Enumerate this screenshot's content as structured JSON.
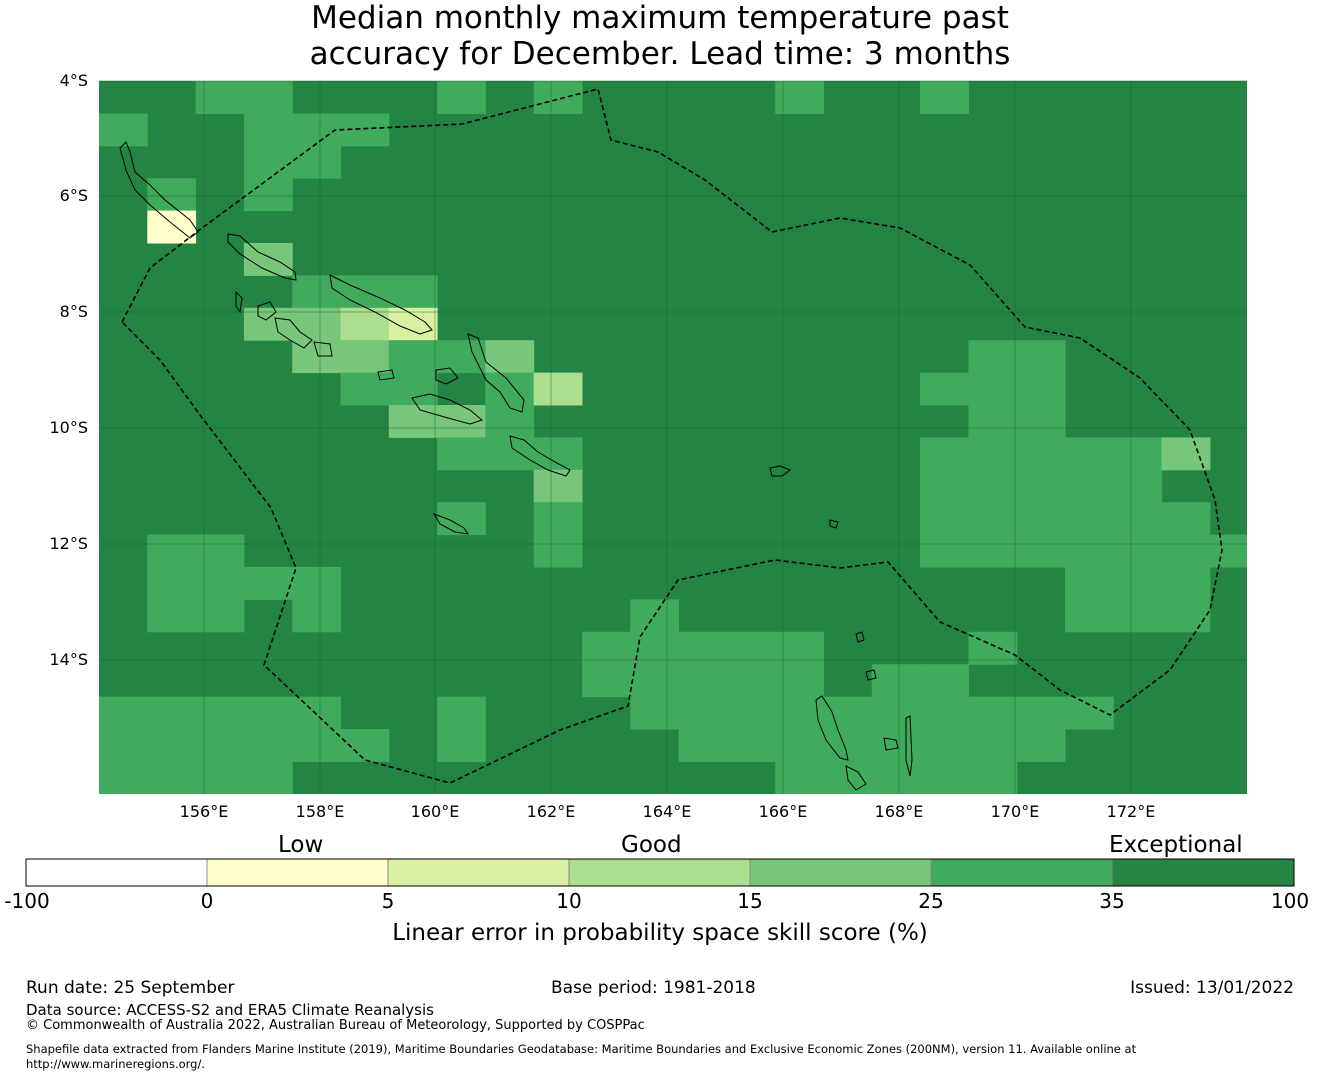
{
  "title": {
    "line1": "Median monthly maximum temperature past",
    "line2": "accuracy for December. Lead time: 3 months"
  },
  "map": {
    "lon_range": [
      154.2,
      174.0
    ],
    "lat_range": [
      -16.3,
      -4.0
    ],
    "grid_cell_deg": 0.83,
    "lat_labels": [
      "4°S",
      "6°S",
      "8°S",
      "10°S",
      "12°S",
      "14°S"
    ],
    "lon_labels": [
      "156°E",
      "158°E",
      "160°E",
      "162°E",
      "164°E",
      "166°E",
      "168°E",
      "170°E",
      "172°E"
    ],
    "eez_boundary": "dashed",
    "background_category": "35 to 100",
    "categories": [
      {
        "range": "-100 to 0",
        "color": "#ffffff"
      },
      {
        "range": "0 to 5",
        "color": "#ffffcc"
      },
      {
        "range": "5 to 10",
        "color": "#d9f0a3"
      },
      {
        "range": "10 to 15",
        "color": "#addd8e"
      },
      {
        "range": "15 to 25",
        "color": "#78c679"
      },
      {
        "range": "25 to 35",
        "color": "#41ab5d"
      },
      {
        "range": "35 to 100",
        "color": "#238443"
      }
    ]
  },
  "legend": {
    "low": "Low",
    "good": "Good",
    "exceptional": "Exceptional",
    "ticks": [
      "-100",
      "0",
      "5",
      "10",
      "15",
      "25",
      "35",
      "100"
    ],
    "colors": [
      "#ffffff",
      "#ffffcc",
      "#d9f0a3",
      "#addd8e",
      "#78c679",
      "#41ab5d",
      "#238443"
    ],
    "title": "Linear error in probability space skill score (%)"
  },
  "footer": {
    "run_date": "Run date: 25 September",
    "base_period": "Base period: 1981-2018",
    "issued": "Issued: 13/01/2022",
    "data_source": "Data source: ACCESS-S2 and ERA5 Climate Reanalysis",
    "copyright": "© Commonwealth of Australia 2022, Australian Bureau of Meteorology, Supported by COSPPac",
    "shapefile_line1": "Shapefile data extracted from Flanders Marine Institute (2019), Maritime Boundaries Geodatabase: Maritime Boundaries and Exclusive Economic Zones (200NM), version 11. Available online at",
    "shapefile_line2": "http://www.marineregions.org/."
  }
}
